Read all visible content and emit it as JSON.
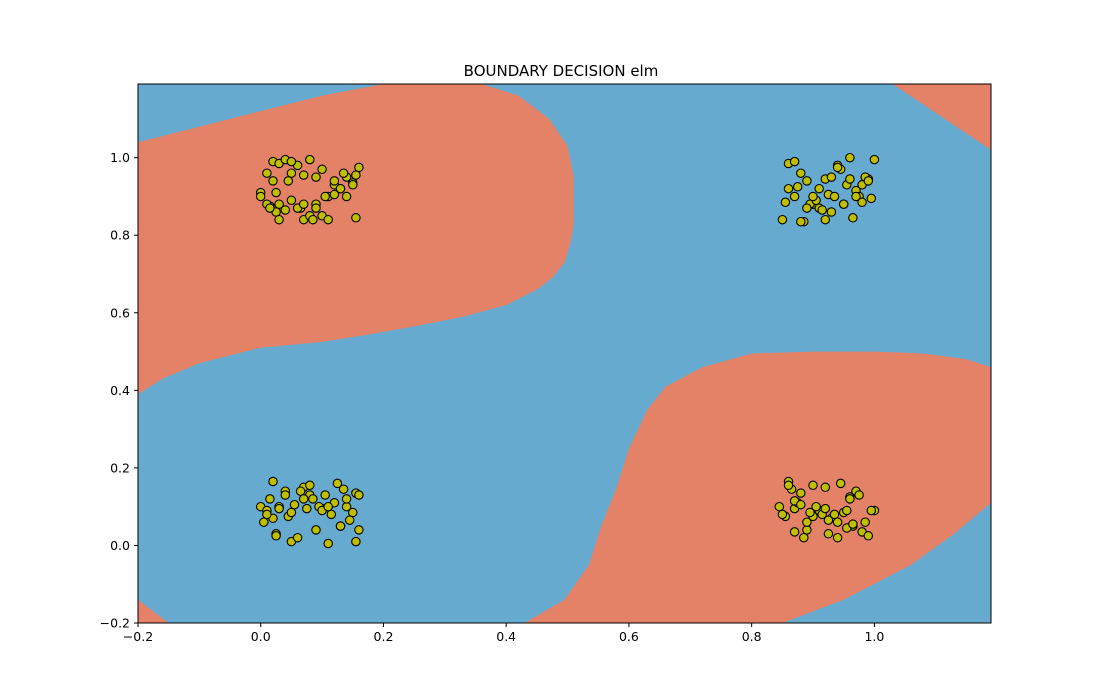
{
  "chart_data": {
    "type": "scatter",
    "title": "BOUNDARY DECISION elm",
    "xlabel": "",
    "ylabel": "",
    "xlim": [
      -0.2,
      1.19
    ],
    "ylim": [
      -0.2,
      1.19
    ],
    "xticks": [
      -0.2,
      0.0,
      0.2,
      0.4,
      0.6,
      0.8,
      1.0
    ],
    "yticks": [
      -0.2,
      0.0,
      0.2,
      0.4,
      0.6,
      0.8,
      1.0
    ],
    "xtick_labels": [
      "−0.2",
      "0.0",
      "0.2",
      "0.4",
      "0.6",
      "0.8",
      "1.0"
    ],
    "ytick_labels": [
      "−0.2",
      "0.0",
      "0.2",
      "0.4",
      "0.6",
      "0.8",
      "1.0"
    ],
    "grid": false,
    "colors": {
      "region_a": "#67aacf",
      "region_b": "#e48268",
      "point_fill": "#bfbf00",
      "point_edge": "#000000"
    },
    "regions": [
      {
        "class": "b",
        "polygon": [
          [
            -0.2,
            0.39
          ],
          [
            -0.2,
            1.04
          ],
          [
            -0.1,
            1.08
          ],
          [
            0.0,
            1.12
          ],
          [
            0.1,
            1.16
          ],
          [
            0.2,
            1.19
          ],
          [
            0.36,
            1.19
          ],
          [
            0.42,
            1.16
          ],
          [
            0.47,
            1.1
          ],
          [
            0.5,
            1.03
          ],
          [
            0.51,
            0.95
          ],
          [
            0.51,
            0.83
          ],
          [
            0.505,
            0.78
          ],
          [
            0.495,
            0.73
          ],
          [
            0.475,
            0.69
          ],
          [
            0.45,
            0.66
          ],
          [
            0.4,
            0.62
          ],
          [
            0.33,
            0.59
          ],
          [
            0.25,
            0.565
          ],
          [
            0.18,
            0.545
          ],
          [
            0.1,
            0.525
          ],
          [
            0.0,
            0.51
          ],
          [
            -0.1,
            0.47
          ],
          [
            -0.16,
            0.43
          ]
        ]
      },
      {
        "class": "b",
        "polygon": [
          [
            0.43,
            -0.2
          ],
          [
            0.85,
            -0.2
          ],
          [
            0.95,
            -0.14
          ],
          [
            1.06,
            -0.05
          ],
          [
            1.13,
            0.03
          ],
          [
            1.19,
            0.11
          ],
          [
            1.19,
            0.46
          ],
          [
            1.15,
            0.48
          ],
          [
            1.08,
            0.495
          ],
          [
            1.0,
            0.5
          ],
          [
            0.9,
            0.5
          ],
          [
            0.8,
            0.495
          ],
          [
            0.72,
            0.46
          ],
          [
            0.66,
            0.41
          ],
          [
            0.63,
            0.35
          ],
          [
            0.6,
            0.25
          ],
          [
            0.58,
            0.15
          ],
          [
            0.555,
            0.05
          ],
          [
            0.535,
            -0.05
          ],
          [
            0.495,
            -0.14
          ]
        ]
      },
      {
        "class": "b",
        "polygon": [
          [
            1.03,
            1.19
          ],
          [
            1.19,
            1.19
          ],
          [
            1.19,
            1.02
          ]
        ]
      },
      {
        "class": "b",
        "polygon": [
          [
            -0.2,
            -0.2
          ],
          [
            -0.15,
            -0.2
          ],
          [
            -0.2,
            -0.14
          ]
        ]
      }
    ],
    "series": [
      {
        "x": [
          0.0,
          0.01,
          0.015,
          0.02,
          0.025,
          0.03,
          0.04,
          0.05,
          0.06,
          0.065,
          0.07,
          0.08,
          0.09,
          0.1,
          0.11,
          0.12,
          0.13,
          0.14,
          0.15,
          0.155,
          0.16,
          0.0,
          0.02,
          0.03,
          0.04,
          0.05,
          0.06,
          0.07,
          0.08,
          0.09,
          0.1,
          0.11,
          0.12,
          0.14,
          0.15,
          0.155,
          0.01,
          0.03,
          0.05,
          0.07,
          0.09,
          0.12,
          0.13,
          0.015,
          0.025,
          0.045,
          0.085,
          0.105,
          0.135
        ],
        "y": [
          0.91,
          0.96,
          0.875,
          0.99,
          0.86,
          0.985,
          0.995,
          0.96,
          0.98,
          0.87,
          0.84,
          0.995,
          0.95,
          0.97,
          0.9,
          0.93,
          0.92,
          0.95,
          0.935,
          0.845,
          0.975,
          0.9,
          0.94,
          0.88,
          0.865,
          0.89,
          0.87,
          0.955,
          0.85,
          0.88,
          0.85,
          0.84,
          0.905,
          0.9,
          0.93,
          0.955,
          0.88,
          0.84,
          0.99,
          0.88,
          0.87,
          0.94,
          0.92,
          0.87,
          0.91,
          0.94,
          0.84,
          0.9,
          0.96
        ],
        "name": ""
      },
      {
        "x": [
          0.0,
          0.005,
          0.01,
          0.015,
          0.02,
          0.025,
          0.03,
          0.04,
          0.05,
          0.06,
          0.07,
          0.08,
          0.09,
          0.1,
          0.11,
          0.12,
          0.13,
          0.14,
          0.15,
          0.155,
          0.16,
          0.02,
          0.03,
          0.045,
          0.055,
          0.065,
          0.075,
          0.085,
          0.095,
          0.105,
          0.115,
          0.125,
          0.135,
          0.145,
          0.155,
          0.01,
          0.04,
          0.07,
          0.1,
          0.13,
          0.16,
          0.025,
          0.05,
          0.08,
          0.11,
          0.14
        ],
        "y": [
          0.1,
          0.06,
          0.09,
          0.12,
          0.165,
          0.03,
          0.1,
          0.14,
          0.01,
          0.02,
          0.15,
          0.13,
          0.04,
          0.095,
          0.005,
          0.11,
          0.05,
          0.1,
          0.085,
          0.135,
          0.04,
          0.07,
          0.095,
          0.075,
          0.105,
          0.14,
          0.095,
          0.12,
          0.1,
          0.13,
          0.08,
          0.16,
          0.145,
          0.065,
          0.01,
          0.08,
          0.13,
          0.12,
          0.09,
          0.05,
          0.13,
          0.025,
          0.085,
          0.155,
          0.1,
          0.12
        ],
        "name": ""
      },
      {
        "x": [
          0.85,
          0.86,
          0.87,
          0.88,
          0.885,
          0.89,
          0.9,
          0.91,
          0.92,
          0.925,
          0.93,
          0.94,
          0.95,
          0.96,
          0.97,
          0.975,
          0.98,
          0.99,
          1.0,
          0.855,
          0.875,
          0.895,
          0.905,
          0.915,
          0.935,
          0.945,
          0.955,
          0.965,
          0.985,
          0.995,
          0.86,
          0.88,
          0.9,
          0.92,
          0.94,
          0.96,
          0.98,
          0.87,
          0.89,
          0.91,
          0.93,
          0.95,
          0.97,
          0.99
        ],
        "y": [
          0.84,
          0.985,
          0.99,
          0.96,
          0.835,
          0.94,
          0.88,
          0.87,
          0.945,
          0.905,
          0.86,
          0.98,
          0.88,
          1.0,
          0.915,
          0.9,
          0.93,
          0.945,
          0.995,
          0.885,
          0.925,
          0.88,
          0.89,
          0.865,
          0.9,
          0.97,
          0.93,
          0.845,
          0.95,
          0.895,
          0.92,
          0.835,
          0.9,
          0.84,
          0.975,
          0.945,
          0.885,
          0.9,
          0.87,
          0.92,
          0.95,
          0.88,
          0.9,
          0.94
        ],
        "name": ""
      },
      {
        "x": [
          0.845,
          0.855,
          0.86,
          0.865,
          0.87,
          0.875,
          0.88,
          0.885,
          0.89,
          0.9,
          0.91,
          0.92,
          0.93,
          0.94,
          0.95,
          0.96,
          0.965,
          0.97,
          0.98,
          0.99,
          1.0,
          0.85,
          0.87,
          0.89,
          0.905,
          0.915,
          0.925,
          0.935,
          0.945,
          0.955,
          0.975,
          0.985,
          0.995,
          0.86,
          0.88,
          0.9,
          0.92,
          0.94,
          0.96,
          0.87,
          0.895,
          0.925,
          0.955,
          0.965
        ],
        "y": [
          0.1,
          0.075,
          0.165,
          0.145,
          0.095,
          0.11,
          0.135,
          0.02,
          0.04,
          0.155,
          0.09,
          0.15,
          0.07,
          0.02,
          0.085,
          0.125,
          0.05,
          0.14,
          0.035,
          0.025,
          0.09,
          0.08,
          0.115,
          0.06,
          0.1,
          0.08,
          0.03,
          0.08,
          0.16,
          0.045,
          0.13,
          0.06,
          0.09,
          0.155,
          0.105,
          0.075,
          0.095,
          0.06,
          0.12,
          0.035,
          0.085,
          0.065,
          0.09,
          0.055
        ],
        "name": ""
      }
    ]
  }
}
